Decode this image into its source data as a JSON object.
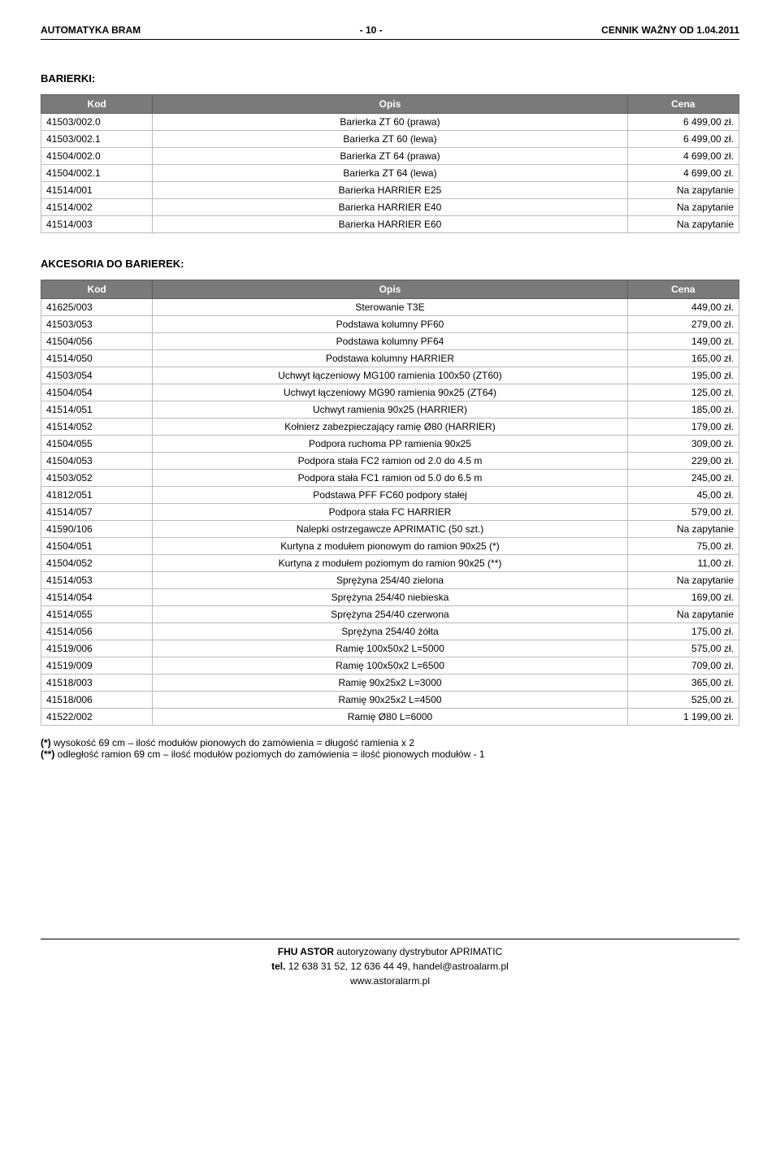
{
  "header": {
    "left": "AUTOMATYKA BRAM",
    "center": "- 10 -",
    "right": "CENNIK WAŻNY OD 1.04.2011"
  },
  "tables": [
    {
      "title": "BARIERKI:",
      "columns": [
        "Kod",
        "Opis",
        "Cena"
      ],
      "rows": [
        [
          "41503/002.0",
          "Barierka ZT 60 (prawa)",
          "6 499,00 zł."
        ],
        [
          "41503/002.1",
          "Barierka ZT 60 (lewa)",
          "6 499,00 zł."
        ],
        [
          "41504/002.0",
          "Barierka ZT 64 (prawa)",
          "4 699,00 zł."
        ],
        [
          "41504/002.1",
          "Barierka ZT 64 (lewa)",
          "4 699,00 zł."
        ],
        [
          "41514/001",
          "Barierka HARRIER E25",
          "Na zapytanie"
        ],
        [
          "41514/002",
          "Barierka HARRIER E40",
          "Na zapytanie"
        ],
        [
          "41514/003",
          "Barierka HARRIER E60",
          "Na zapytanie"
        ]
      ]
    },
    {
      "title": "AKCESORIA DO BARIEREK:",
      "columns": [
        "Kod",
        "Opis",
        "Cena"
      ],
      "rows": [
        [
          "41625/003",
          "Sterowanie T3E",
          "449,00 zł."
        ],
        [
          "41503/053",
          "Podstawa kolumny PF60",
          "279,00 zł."
        ],
        [
          "41504/056",
          "Podstawa kolumny PF64",
          "149,00 zł."
        ],
        [
          "41514/050",
          "Podstawa kolumny HARRIER",
          "165,00 zł."
        ],
        [
          "41503/054",
          "Uchwyt łączeniowy MG100 ramienia 100x50 (ZT60)",
          "195,00 zł."
        ],
        [
          "41504/054",
          "Uchwyt łączeniowy MG90 ramienia 90x25 (ZT64)",
          "125,00 zł."
        ],
        [
          "41514/051",
          "Uchwyt ramienia 90x25 (HARRIER)",
          "185,00 zł."
        ],
        [
          "41514/052",
          "Kołnierz zabezpieczający ramię Ø80 (HARRIER)",
          "179,00 zł."
        ],
        [
          "41504/055",
          "Podpora ruchoma PP ramienia 90x25",
          "309,00 zł."
        ],
        [
          "41504/053",
          "Podpora stała FC2 ramion od 2.0 do 4.5 m",
          "229,00 zł."
        ],
        [
          "41503/052",
          "Podpora stała FC1 ramion od 5.0 do 6.5 m",
          "245,00 zł."
        ],
        [
          "41812/051",
          "Podstawa PFF FC60 podpory stałej",
          "45,00 zł."
        ],
        [
          "41514/057",
          "Podpora stała FC HARRIER",
          "579,00 zł."
        ],
        [
          "41590/106",
          "Nalepki ostrzegawcze APRIMATIC (50 szt.)",
          "Na zapytanie"
        ],
        [
          "41504/051",
          "Kurtyna z modułem pionowym do ramion 90x25 (*)",
          "75,00 zł."
        ],
        [
          "41504/052",
          "Kurtyna z modułem poziomym do ramion 90x25 (**)",
          "11,00 zł."
        ],
        [
          "41514/053",
          "Sprężyna 254/40 zielona",
          "Na zapytanie"
        ],
        [
          "41514/054",
          "Sprężyna 254/40 niebieska",
          "169,00 zł."
        ],
        [
          "41514/055",
          "Sprężyna 254/40 czerwona",
          "Na zapytanie"
        ],
        [
          "41514/056",
          "Sprężyna 254/40 żółta",
          "175,00 zł."
        ],
        [
          "41519/006",
          "Ramię 100x50x2 L=5000",
          "575,00 zł."
        ],
        [
          "41519/009",
          "Ramię 100x50x2 L=6500",
          "709,00 zł."
        ],
        [
          "41518/003",
          "Ramię 90x25x2 L=3000",
          "365,00 zł."
        ],
        [
          "41518/006",
          "Ramię 90x25x2 L=4500",
          "525,00 zł."
        ],
        [
          "41522/002",
          "Ramię Ø80 L=6000",
          "1 199,00 zł."
        ]
      ]
    }
  ],
  "footnotes": [
    {
      "mark": "(*)",
      "text": "wysokość 69 cm – ilość modułów pionowych do zamówienia = długość ramienia x 2"
    },
    {
      "mark": "(**)",
      "text": "odległość ramion 69 cm – ilość modułów poziomych do zamówienia = ilość pionowych modułów - 1"
    }
  ],
  "footer": {
    "line1a": "FHU ASTOR",
    "line1b": "  autoryzowany dystrybutor APRIMATIC",
    "line2a": "tel.",
    "line2b": " 12 638 31 52, 12 636 44 49,  handel@astroalarm.pl",
    "line3": "www.astoralarm.pl"
  }
}
